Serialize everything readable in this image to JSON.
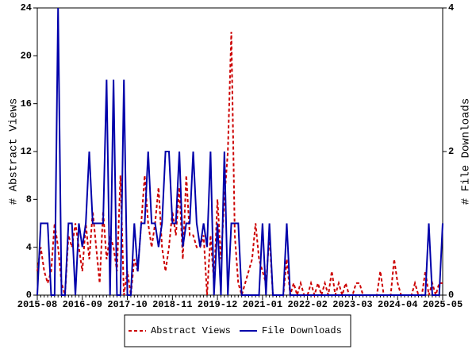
{
  "chart_data": {
    "type": "line",
    "categories": [
      "2015-08",
      null,
      null,
      null,
      null,
      null,
      null,
      null,
      null,
      null,
      null,
      null,
      null,
      "2016-09",
      null,
      null,
      null,
      null,
      null,
      null,
      null,
      null,
      null,
      null,
      null,
      null,
      "2017-10",
      null,
      null,
      null,
      null,
      null,
      null,
      null,
      null,
      null,
      null,
      null,
      null,
      "2018-11",
      null,
      null,
      null,
      null,
      null,
      null,
      null,
      null,
      null,
      null,
      null,
      null,
      "2019-12",
      null,
      null,
      null,
      null,
      null,
      null,
      null,
      null,
      null,
      null,
      null,
      null,
      "2021-01",
      null,
      null,
      null,
      null,
      null,
      null,
      null,
      null,
      null,
      null,
      null,
      null,
      "2022-02",
      null,
      null,
      null,
      null,
      null,
      null,
      null,
      null,
      null,
      null,
      null,
      null,
      "2023-03",
      null,
      null,
      null,
      null,
      null,
      null,
      null,
      null,
      null,
      null,
      null,
      null,
      "2024-04",
      null,
      null,
      null,
      null,
      null,
      null,
      null,
      null,
      null,
      null,
      null,
      null,
      "2025-05"
    ],
    "y_label": "# Abstract Views",
    "y2_label": "# File Downloads",
    "ylim": [
      0,
      24
    ],
    "yticks": [
      0,
      4,
      8,
      12,
      16,
      20,
      24
    ],
    "y2lim": [
      0,
      4
    ],
    "y2ticks": [
      0,
      2,
      4
    ],
    "legend": "bottom",
    "series": [
      {
        "name": "Abstract Views",
        "color": "#cc0000",
        "dashed": true,
        "values": [
          2,
          4,
          2,
          1,
          2,
          6,
          4,
          1,
          0,
          5,
          4,
          6,
          4,
          2,
          6,
          3,
          7,
          4,
          1,
          7,
          3,
          5,
          4,
          2,
          10,
          0,
          2,
          0,
          3,
          2,
          6,
          10,
          6,
          4,
          6,
          9,
          4,
          2,
          4,
          7,
          5,
          9,
          3,
          10,
          5,
          5,
          4,
          4,
          5,
          0,
          5,
          1,
          8,
          3,
          8,
          12,
          22,
          5,
          1,
          0,
          1,
          2,
          3,
          6,
          3,
          2,
          1,
          5,
          0,
          0,
          0,
          0,
          3,
          0,
          1,
          0,
          1,
          0,
          0,
          1,
          0,
          1,
          0,
          1,
          0,
          2,
          0,
          1,
          0,
          1,
          0,
          0,
          1,
          1,
          0,
          0,
          0,
          0,
          0,
          2,
          0,
          0,
          0,
          3,
          1,
          0,
          0,
          0,
          0,
          1,
          0,
          0,
          2,
          0,
          1,
          0,
          1,
          1
        ]
      },
      {
        "name": "File Downloads",
        "color": "#0000aa",
        "axis": "y2",
        "dashed": false,
        "values": [
          0,
          1,
          1,
          1,
          0,
          0,
          4,
          0,
          0,
          1,
          1,
          0,
          1,
          0.67,
          1,
          2,
          1,
          1,
          1,
          1,
          3,
          0,
          3,
          0,
          0,
          3,
          0,
          0,
          1,
          0.33,
          1,
          1,
          2,
          1,
          1,
          0.67,
          1,
          2,
          2,
          1,
          1,
          2,
          0.67,
          1,
          1,
          2,
          1,
          0.67,
          1,
          0.67,
          2,
          0,
          1,
          0,
          2,
          0,
          1,
          1,
          1,
          0,
          0,
          0,
          0,
          0,
          0,
          1,
          0,
          1,
          0,
          0,
          0,
          0,
          1,
          0,
          0,
          0,
          0,
          0,
          0,
          0,
          0,
          0,
          0,
          0,
          0,
          0,
          0,
          0,
          0,
          0,
          0,
          0,
          0,
          0,
          0,
          0,
          0,
          0,
          0,
          0,
          0,
          0,
          0,
          0,
          0,
          0,
          0,
          0,
          0,
          0,
          0,
          0,
          0,
          1,
          0,
          0,
          0,
          1
        ]
      }
    ]
  }
}
